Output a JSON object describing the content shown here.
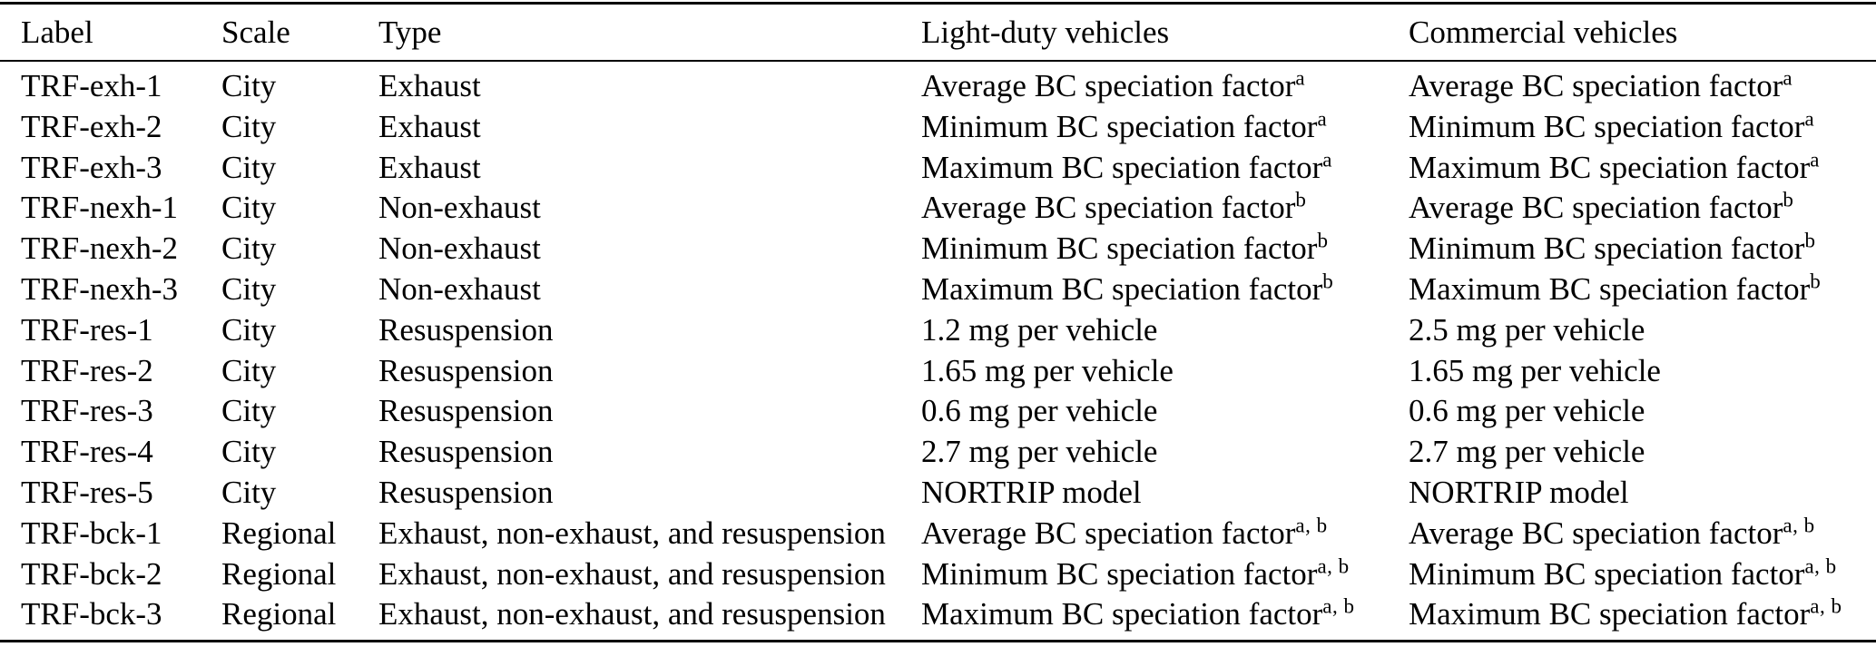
{
  "table": {
    "columns": [
      {
        "label": "Label"
      },
      {
        "label": "Scale"
      },
      {
        "label": "Type"
      },
      {
        "label": "Light-duty vehicles"
      },
      {
        "label": "Commercial vehicles"
      }
    ],
    "rows": [
      {
        "label": "TRF-exh-1",
        "scale": "City",
        "type": "Exhaust",
        "light_duty": {
          "text": "Average BC speciation factor",
          "sup": "a"
        },
        "commercial": {
          "text": "Average BC speciation factor",
          "sup": "a"
        }
      },
      {
        "label": "TRF-exh-2",
        "scale": "City",
        "type": "Exhaust",
        "light_duty": {
          "text": "Minimum BC speciation factor",
          "sup": "a"
        },
        "commercial": {
          "text": "Minimum BC speciation factor",
          "sup": "a"
        }
      },
      {
        "label": "TRF-exh-3",
        "scale": "City",
        "type": "Exhaust",
        "light_duty": {
          "text": "Maximum BC speciation factor",
          "sup": "a"
        },
        "commercial": {
          "text": "Maximum BC speciation factor",
          "sup": "a"
        }
      },
      {
        "label": "TRF-nexh-1",
        "scale": "City",
        "type": "Non-exhaust",
        "light_duty": {
          "text": "Average BC speciation factor",
          "sup": "b"
        },
        "commercial": {
          "text": "Average BC speciation factor",
          "sup": "b"
        }
      },
      {
        "label": "TRF-nexh-2",
        "scale": "City",
        "type": "Non-exhaust",
        "light_duty": {
          "text": "Minimum BC speciation factor",
          "sup": "b"
        },
        "commercial": {
          "text": "Minimum BC speciation factor",
          "sup": "b"
        }
      },
      {
        "label": "TRF-nexh-3",
        "scale": "City",
        "type": "Non-exhaust",
        "light_duty": {
          "text": "Maximum BC speciation factor",
          "sup": "b"
        },
        "commercial": {
          "text": "Maximum BC speciation factor",
          "sup": "b"
        }
      },
      {
        "label": "TRF-res-1",
        "scale": "City",
        "type": "Resuspension",
        "light_duty": {
          "text": "1.2 mg per vehicle",
          "sup": ""
        },
        "commercial": {
          "text": "2.5 mg per vehicle",
          "sup": ""
        }
      },
      {
        "label": "TRF-res-2",
        "scale": "City",
        "type": "Resuspension",
        "light_duty": {
          "text": "1.65 mg per vehicle",
          "sup": ""
        },
        "commercial": {
          "text": "1.65 mg per vehicle",
          "sup": ""
        }
      },
      {
        "label": "TRF-res-3",
        "scale": "City",
        "type": "Resuspension",
        "light_duty": {
          "text": "0.6 mg per vehicle",
          "sup": ""
        },
        "commercial": {
          "text": "0.6 mg per vehicle",
          "sup": ""
        }
      },
      {
        "label": "TRF-res-4",
        "scale": "City",
        "type": "Resuspension",
        "light_duty": {
          "text": "2.7 mg per vehicle",
          "sup": ""
        },
        "commercial": {
          "text": "2.7 mg per vehicle",
          "sup": ""
        }
      },
      {
        "label": "TRF-res-5",
        "scale": "City",
        "type": "Resuspension",
        "light_duty": {
          "text": "NORTRIP model",
          "sup": ""
        },
        "commercial": {
          "text": "NORTRIP model",
          "sup": ""
        }
      },
      {
        "label": "TRF-bck-1",
        "scale": "Regional",
        "type": "Exhaust, non-exhaust, and resuspension",
        "light_duty": {
          "text": "Average BC speciation factor",
          "sup": "a, b"
        },
        "commercial": {
          "text": "Average BC speciation factor",
          "sup": "a, b"
        }
      },
      {
        "label": "TRF-bck-2",
        "scale": "Regional",
        "type": "Exhaust, non-exhaust, and resuspension",
        "light_duty": {
          "text": "Minimum BC speciation factor",
          "sup": "a, b"
        },
        "commercial": {
          "text": "Minimum BC speciation factor",
          "sup": "a, b"
        }
      },
      {
        "label": "TRF-bck-3",
        "scale": "Regional",
        "type": "Exhaust, non-exhaust, and resuspension",
        "light_duty": {
          "text": "Maximum BC speciation factor",
          "sup": "a, b"
        },
        "commercial": {
          "text": "Maximum BC speciation factor",
          "sup": "a, b"
        }
      }
    ]
  }
}
